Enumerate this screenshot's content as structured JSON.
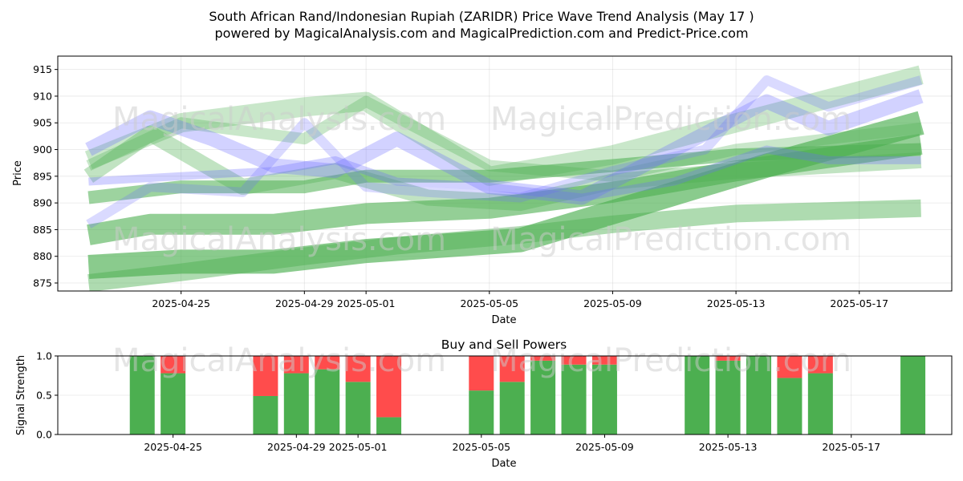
{
  "header": {
    "title_line1": "South African Rand/Indonesian Rupiah (ZARIDR) Price Wave Trend Analysis (May 17 )",
    "title_line2": "powered by MagicalAnalysis.com and MagicalPrediction.com and Predict-Price.com"
  },
  "watermarks": [
    "MagicalAnalysis.com",
    "MagicalPrediction.com"
  ],
  "chart_data": [
    {
      "type": "area",
      "title": "",
      "xlabel": "Date",
      "ylabel": "Price",
      "ylim": [
        873.5,
        917.5
      ],
      "yticks": [
        875,
        880,
        885,
        890,
        895,
        900,
        905,
        910,
        915
      ],
      "xlim": [
        "2025-04-21",
        "2025-05-20"
      ],
      "xticks": [
        "2025-04-25",
        "2025-04-29",
        "2025-05-01",
        "2025-05-05",
        "2025-05-09",
        "2025-05-13",
        "2025-05-17"
      ],
      "grid": true,
      "colors": {
        "green": "#4caf50",
        "blue": "#6b6bff"
      },
      "series": [
        {
          "color": "green",
          "x": [
            "2025-04-22",
            "2025-04-25",
            "2025-04-28",
            "2025-05-01",
            "2025-05-06",
            "2025-05-10",
            "2025-05-14",
            "2025-05-19"
          ],
          "values": [
            878,
            879,
            879,
            881,
            883,
            890,
            897,
            905
          ]
        },
        {
          "color": "green",
          "x": [
            "2025-04-22",
            "2025-04-25",
            "2025-04-29",
            "2025-05-02",
            "2025-05-06",
            "2025-05-09",
            "2025-05-13",
            "2025-05-19"
          ],
          "values": [
            875,
            877,
            880,
            882,
            884,
            886,
            888,
            889
          ]
        },
        {
          "color": "green",
          "x": [
            "2025-04-22",
            "2025-04-25",
            "2025-04-29",
            "2025-05-01",
            "2025-05-05",
            "2025-05-09",
            "2025-05-13",
            "2025-05-19"
          ],
          "values": [
            891,
            893,
            893,
            895,
            895,
            897,
            899,
            900
          ]
        },
        {
          "color": "green",
          "x": [
            "2025-04-22",
            "2025-04-24",
            "2025-04-28",
            "2025-05-01",
            "2025-05-05",
            "2025-05-09",
            "2025-05-13",
            "2025-05-19"
          ],
          "values": [
            884,
            886,
            886,
            888,
            889,
            892,
            896,
            901
          ]
        },
        {
          "color": "green",
          "x": [
            "2025-04-22",
            "2025-04-24",
            "2025-04-27",
            "2025-04-30",
            "2025-05-03",
            "2025-05-06",
            "2025-05-09",
            "2025-05-13",
            "2025-05-19"
          ],
          "values": [
            895,
            903,
            893,
            896,
            891,
            890,
            894,
            896,
            898
          ]
        },
        {
          "color": "green",
          "x": [
            "2025-04-22",
            "2025-04-25",
            "2025-04-29",
            "2025-05-01",
            "2025-05-05",
            "2025-05-09",
            "2025-05-13",
            "2025-05-19"
          ],
          "values": [
            897,
            905,
            902,
            909,
            897,
            895,
            900,
            904
          ]
        },
        {
          "color": "green",
          "x": [
            "2025-04-22",
            "2025-04-25",
            "2025-04-29",
            "2025-05-01",
            "2025-05-05",
            "2025-05-09",
            "2025-05-13",
            "2025-05-19"
          ],
          "values": [
            898,
            905,
            908,
            909,
            895,
            899,
            905,
            914
          ]
        },
        {
          "color": "blue",
          "x": [
            "2025-04-22",
            "2025-04-24",
            "2025-04-26",
            "2025-04-28",
            "2025-04-30",
            "2025-05-02",
            "2025-05-05",
            "2025-05-08",
            "2025-05-11",
            "2025-05-14",
            "2025-05-16",
            "2025-05-19"
          ],
          "values": [
            900,
            906,
            902,
            897,
            896,
            902,
            893,
            891,
            900,
            909,
            904,
            910
          ]
        },
        {
          "color": "blue",
          "x": [
            "2025-04-22",
            "2025-04-24",
            "2025-04-27",
            "2025-04-29",
            "2025-05-01",
            "2025-05-03",
            "2025-05-06",
            "2025-05-09",
            "2025-05-12",
            "2025-05-14",
            "2025-05-16",
            "2025-05-19"
          ],
          "values": [
            886,
            893,
            892,
            905,
            893,
            892,
            891,
            896,
            900,
            913,
            908,
            913
          ]
        },
        {
          "color": "blue",
          "x": [
            "2025-04-22",
            "2025-04-25",
            "2025-04-28",
            "2025-04-30",
            "2025-05-02",
            "2025-05-05",
            "2025-05-08",
            "2025-05-11",
            "2025-05-14",
            "2025-05-16",
            "2025-05-19"
          ],
          "values": [
            894,
            895,
            896,
            898,
            894,
            893,
            891,
            894,
            900,
            898,
            898
          ]
        }
      ]
    },
    {
      "type": "bar",
      "title": "Buy and Sell Powers",
      "xlabel": "Date",
      "ylabel": "Signal Strength",
      "ylim": [
        0,
        1
      ],
      "yticks": [
        "0.0",
        "0.5",
        "1.0"
      ],
      "xticks": [
        "2025-04-25",
        "2025-04-29",
        "2025-05-01",
        "2025-05-05",
        "2025-05-09",
        "2025-05-13",
        "2025-05-17"
      ],
      "grid": true,
      "colors": {
        "buy": "#4caf50",
        "sell": "#ff4c4c"
      },
      "x": [
        "2025-04-24",
        "2025-04-25",
        "2025-04-28",
        "2025-04-29",
        "2025-04-30",
        "2025-05-01",
        "2025-05-02",
        "2025-05-05",
        "2025-05-06",
        "2025-05-07",
        "2025-05-08",
        "2025-05-09",
        "2025-05-12",
        "2025-05-13",
        "2025-05-14",
        "2025-05-15",
        "2025-05-16",
        "2025-05-19"
      ],
      "series": [
        {
          "name": "Buy",
          "values": [
            1.0,
            0.78,
            0.49,
            0.78,
            0.83,
            0.67,
            0.22,
            0.56,
            0.67,
            0.94,
            0.89,
            0.89,
            1.0,
            0.94,
            1.0,
            0.72,
            0.78,
            1.0
          ]
        },
        {
          "name": "Sell",
          "values": [
            0.0,
            0.22,
            0.51,
            0.22,
            0.17,
            0.33,
            0.78,
            0.44,
            0.33,
            0.06,
            0.11,
            0.11,
            0.0,
            0.06,
            0.0,
            0.28,
            0.22,
            0.0
          ]
        }
      ]
    }
  ]
}
